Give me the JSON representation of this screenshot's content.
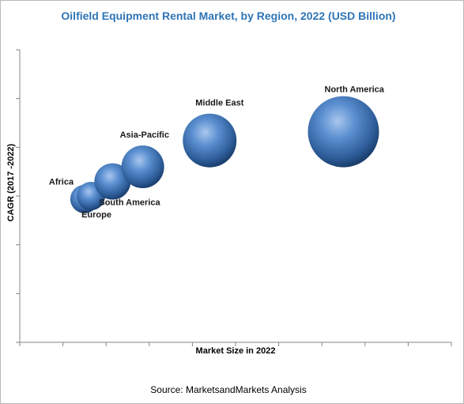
{
  "chart_data": {
    "type": "bubble",
    "title": "Oilfield Equipment Rental Market, by Region, 2022 (USD Billion)",
    "xlabel": "Market Size in 2022",
    "ylabel": "CAGR (2017 -2022)",
    "source": "Source: MarketsandMarkets Analysis",
    "grid": false,
    "legend": "none",
    "x_tick_labels": false,
    "y_tick_labels": false,
    "xlim": [
      0,
      100
    ],
    "ylim": [
      0,
      100
    ],
    "size_unit": "relative",
    "bubble_color": "#4f81bd",
    "series": [
      {
        "label": "Africa",
        "x": 15,
        "y": 49,
        "size": 18
      },
      {
        "label": "Europe",
        "x": 16.5,
        "y": 50,
        "size": 18
      },
      {
        "label": "South America",
        "x": 21.5,
        "y": 55,
        "size": 23
      },
      {
        "label": "Asia-Pacific",
        "x": 28.5,
        "y": 60,
        "size": 27
      },
      {
        "label": "Middle East",
        "x": 44,
        "y": 69,
        "size": 34
      },
      {
        "label": "North America",
        "x": 75,
        "y": 72,
        "size": 45
      }
    ]
  }
}
